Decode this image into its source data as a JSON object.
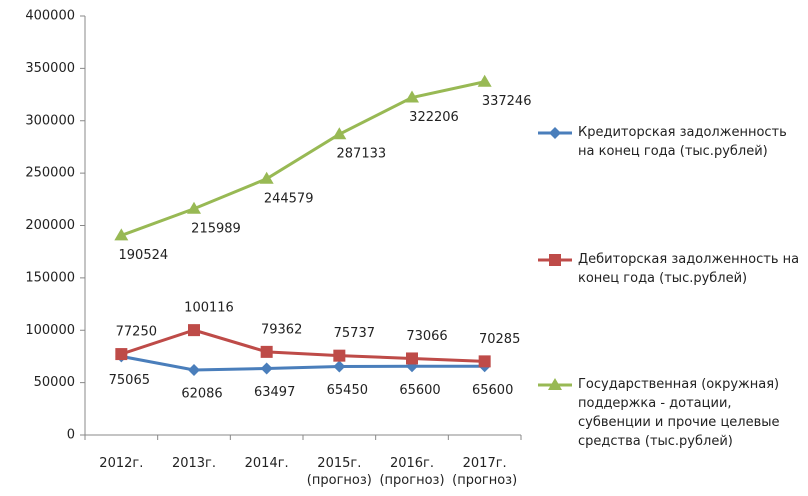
{
  "chart_data": {
    "type": "line",
    "categories": [
      "2012г.",
      "2013г.",
      "2014г.",
      "2015г. (прогноз)",
      "2016г. (прогноз)",
      "2017г. (прогноз)"
    ],
    "series": [
      {
        "name": "Кредиторская задолженность на конец года (тыс.рублей)",
        "color": "#4a7ebb",
        "marker": "diamond",
        "values": [
          75065,
          62086,
          63497,
          65450,
          65600,
          65600
        ]
      },
      {
        "name": "Дебиторская задолженность на конец года (тыс.рублей)",
        "color": "#be4b48",
        "marker": "square",
        "values": [
          77250,
          100116,
          79362,
          75737,
          73066,
          70285
        ]
      },
      {
        "name": "Государственная (окружная) поддержка - дотации, субвенции и прочие целевые средства (тыс.рублей)",
        "color": "#98b954",
        "marker": "triangle",
        "values": [
          190524,
          215989,
          244579,
          287133,
          322206,
          337246
        ]
      }
    ],
    "ylim": [
      0,
      400000
    ],
    "yticks": [
      0,
      50000,
      100000,
      150000,
      200000,
      250000,
      300000,
      350000,
      400000
    ],
    "grid": false,
    "legend": "right"
  }
}
